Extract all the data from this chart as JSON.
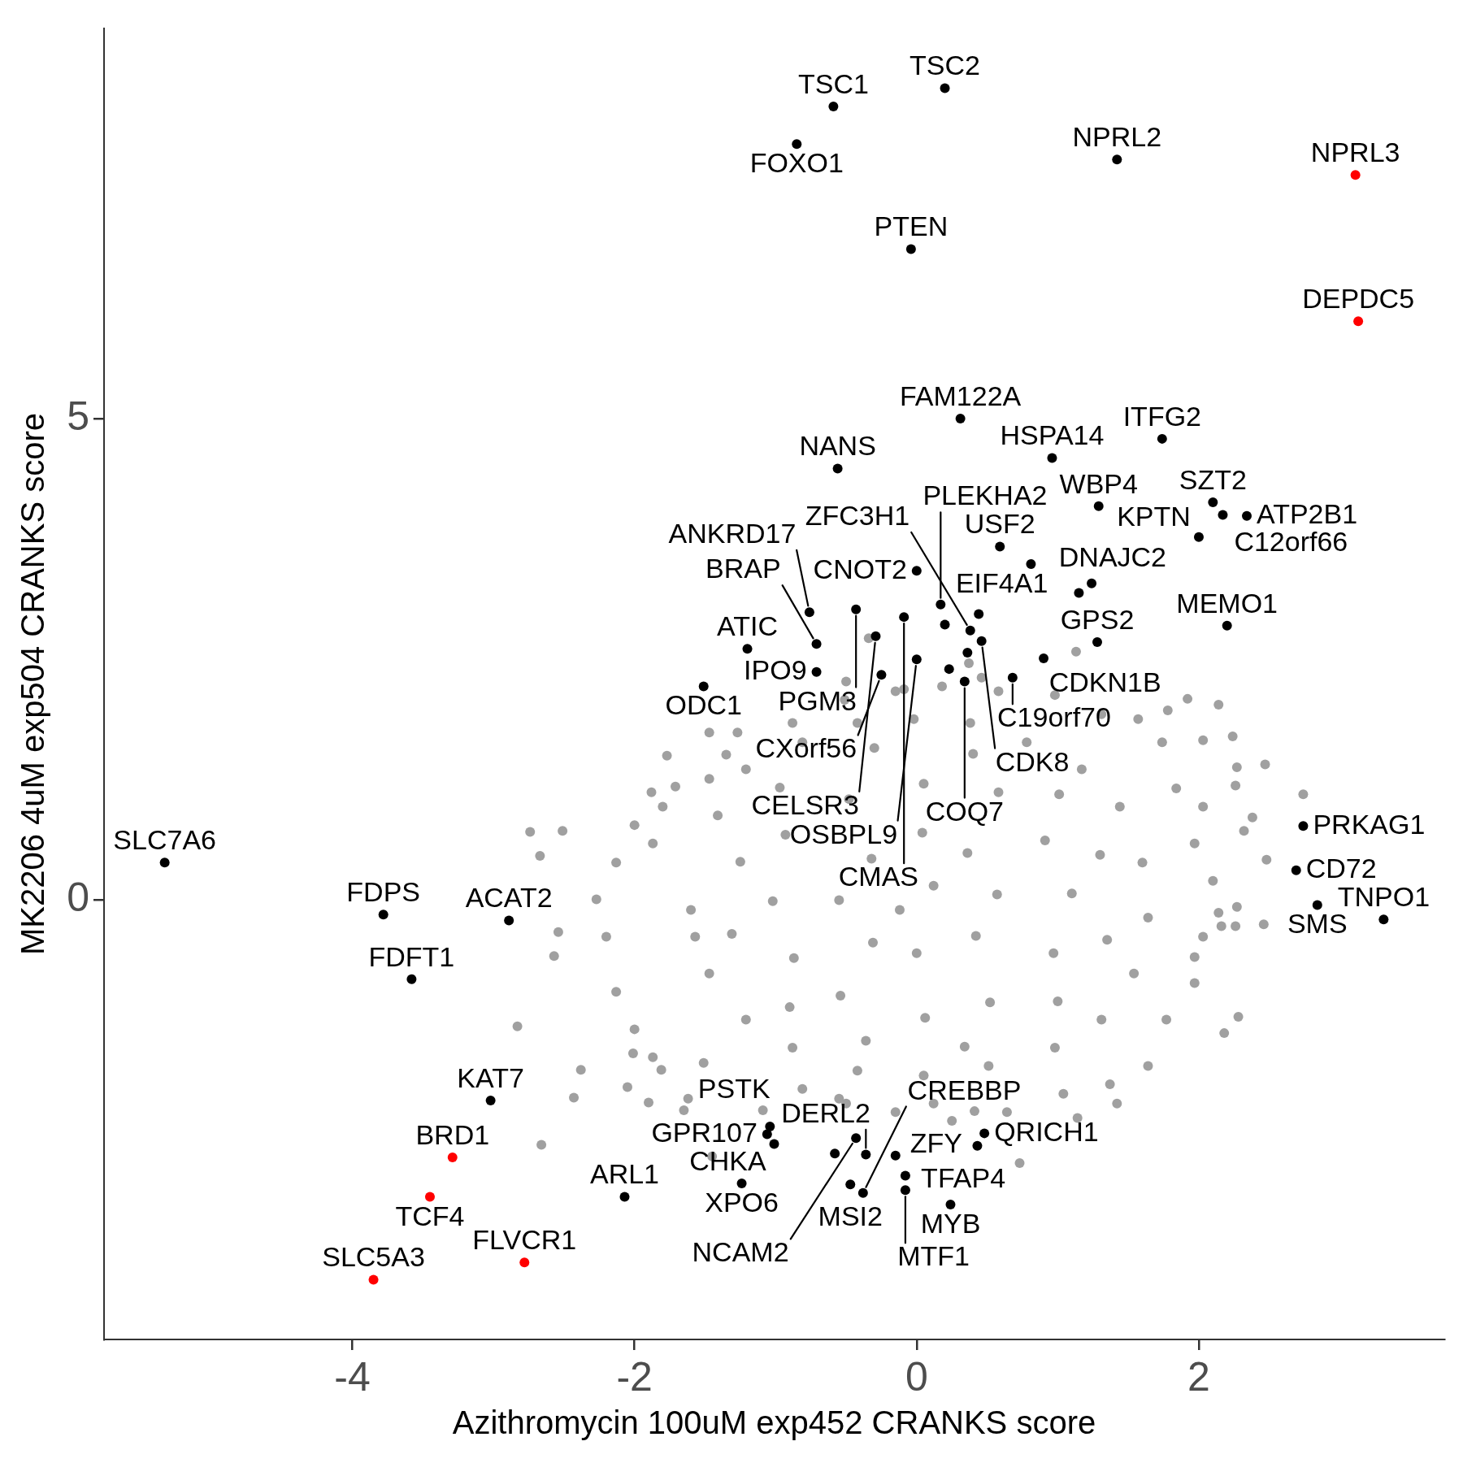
{
  "chart_data": {
    "type": "scatter",
    "xlabel": "Azithromycin 100uM exp452 CRANKS score",
    "ylabel": "MK2206 4uM exp504 CRANKS score",
    "xlim": [
      -5.76,
      3.74
    ],
    "ylim": [
      -4.56,
      9.05
    ],
    "xticks": [
      -4,
      -2,
      0,
      2
    ],
    "yticks": [
      0,
      5
    ],
    "marker": "circle",
    "series": [
      {
        "color": "#a0a0a0",
        "x": [
          -1.6,
          -1.41,
          -1.21,
          -0.81,
          -0.42,
          -0.02,
          0.38,
          0.78,
          1.17,
          1.44,
          1.6,
          1.64,
          1.54,
          1.31,
          0.98,
          0.51,
          0.05,
          -0.42,
          -0.88,
          -1.21,
          -1.47,
          -1.57,
          -1.87,
          -1.77,
          -1.47,
          -1.27,
          -0.88,
          -0.51,
          -0.15,
          0.18,
          0.58,
          0.98,
          1.31,
          1.57,
          1.74,
          1.84,
          2.03,
          1.97,
          2.1,
          2.03,
          1.97,
          1.77,
          1.64,
          1.37,
          1.04,
          0.64,
          0.12,
          -0.15,
          -0.55,
          -0.81,
          -1.87,
          -2.0,
          -2.13,
          -2.2,
          -2.27,
          -2.13,
          -2.0,
          -1.8,
          -2.74,
          -2.51,
          -2.67,
          -2.54,
          -2.57,
          -2.83,
          -2.38,
          -2.43,
          -2.66,
          -2.05,
          -1.9,
          -1.65,
          -1.62,
          -2.01,
          -1.81,
          -1.51,
          -1.45,
          -1.09,
          -0.5,
          0.25,
          0.41,
          0.73,
          1.14,
          1.42,
          2.28,
          2.18,
          1.97,
          2.14,
          2.16,
          2.26,
          2.27,
          2.46,
          2.48,
          2.32,
          2.38,
          2.74,
          2.47,
          2.27,
          2.26,
          2.03,
          2.24,
          1.78,
          1.92,
          2.14,
          1.13,
          0.37,
          0.46,
          -0.34,
          -0.5,
          -0.09,
          -1.47,
          -1.88,
          -1.71,
          -1.35,
          1.1,
          0.91,
          0.58,
          0.05,
          -0.48,
          -0.93,
          -1.02,
          -0.87,
          -0.54,
          0.06,
          0.52,
          0.97,
          0.57,
          0.36,
          0.04,
          -0.32,
          -0.55,
          -0.31,
          0.0,
          0.42,
          0.12,
          -0.12,
          1.3,
          1.01,
          0.4,
          -0.3,
          -0.97,
          -1.25,
          -1.31,
          -0.9,
          -0.36,
          0.34,
          1.0,
          1.35
        ],
        "values": [
          -0.1,
          0.88,
          1.36,
          1.64,
          1.84,
          1.88,
          1.84,
          1.64,
          1.36,
          0.97,
          0.39,
          -0.18,
          -0.76,
          -1.24,
          -1.53,
          -1.72,
          -1.82,
          -1.77,
          -1.53,
          -1.24,
          -0.76,
          -0.38,
          0.59,
          1.5,
          1.26,
          1.74,
          1.84,
          2.08,
          2.17,
          2.22,
          2.17,
          2.13,
          1.93,
          1.88,
          1.64,
          1.16,
          0.97,
          0.59,
          0.2,
          -0.38,
          -0.86,
          -1.24,
          -1.72,
          -1.91,
          -2.01,
          -2.2,
          -2.11,
          -2.2,
          -2.06,
          -1.96,
          -1.63,
          -1.34,
          -0.95,
          -0.38,
          0.01,
          0.39,
          0.78,
          0.97,
          0.71,
          0.72,
          0.46,
          -0.33,
          -0.58,
          -1.31,
          -1.76,
          -2.05,
          -2.54,
          -1.94,
          -2.1,
          -2.18,
          -2.06,
          -1.59,
          -1.76,
          -1.69,
          -2.66,
          -2.18,
          -2.11,
          -2.29,
          -2.19,
          -2.73,
          -2.26,
          -2.11,
          -1.21,
          -1.38,
          -0.59,
          -0.13,
          -0.27,
          -0.27,
          -0.07,
          -0.25,
          0.42,
          0.72,
          0.86,
          1.1,
          1.41,
          1.38,
          1.19,
          1.66,
          1.7,
          1.97,
          2.09,
          2.03,
          2.58,
          2.46,
          2.31,
          2.72,
          2.27,
          2.19,
          1.74,
          1.12,
          1.18,
          1.51,
          0.07,
          0.62,
          1.12,
          1.21,
          1.05,
          0.68,
          -0.01,
          -0.6,
          -0.99,
          -1.22,
          -1.06,
          -0.55,
          0.06,
          0.49,
          0.7,
          0.43,
          0.0,
          -0.44,
          -0.55,
          -0.37,
          0.15,
          -0.1,
          0.47,
          1.1,
          1.52,
          1.58,
          1.17,
          0.4,
          -0.35,
          -1.11,
          -1.46,
          -1.52,
          -1.05,
          -0.41
        ]
      },
      {
        "color": "#000000",
        "x": [
          -0.59,
          0.2,
          -0.85,
          1.42,
          -0.04,
          0.31,
          1.74,
          -0.56,
          0.96,
          2.1,
          2.17,
          2.34,
          2.0,
          1.29,
          0.59,
          0.81,
          1.24,
          1.15,
          0.0,
          -0.76,
          -0.43,
          -0.09,
          0.17,
          0.44,
          0.2,
          0.38,
          0.46,
          1.28,
          2.2,
          0.9,
          -1.2,
          -0.71,
          -0.29,
          -1.51,
          -0.71,
          -0.25,
          0.0,
          0.23,
          0.36,
          0.34,
          0.68,
          2.74,
          2.69,
          2.84,
          3.31,
          -5.33,
          -3.78,
          -2.89,
          -3.58,
          -3.02,
          -2.07,
          -1.04,
          -1.06,
          -1.01,
          -1.24,
          -0.43,
          -0.58,
          -0.36,
          -0.15,
          -0.08,
          -0.08,
          -0.47,
          -0.38,
          0.24,
          0.48,
          0.43
        ],
        "values": [
          8.24,
          8.43,
          7.85,
          7.69,
          6.76,
          5.0,
          4.79,
          4.48,
          4.59,
          4.13,
          4.0,
          3.99,
          3.77,
          4.09,
          3.67,
          3.49,
          3.29,
          3.19,
          3.42,
          2.99,
          3.02,
          2.94,
          3.07,
          2.97,
          2.86,
          2.8,
          2.69,
          2.68,
          2.85,
          2.51,
          2.61,
          2.66,
          2.74,
          2.22,
          2.37,
          2.34,
          2.5,
          2.4,
          2.57,
          2.27,
          2.31,
          0.77,
          0.31,
          -0.05,
          -0.2,
          0.39,
          -0.15,
          -0.21,
          -0.82,
          -2.08,
          -3.08,
          -2.35,
          -2.43,
          -2.53,
          -2.94,
          -2.47,
          -2.63,
          -2.64,
          -2.65,
          -2.86,
          -3.01,
          -2.95,
          -3.04,
          -3.16,
          -2.42,
          -2.55
        ]
      },
      {
        "color": "#ff0000",
        "x": [
          3.11,
          3.13,
          -3.29,
          -3.45,
          -3.85,
          -2.78
        ],
        "values": [
          7.53,
          6.01,
          -2.67,
          -3.08,
          -3.94,
          -3.76
        ]
      }
    ],
    "annotations": [
      {
        "text": "TSC1",
        "x": -0.59,
        "y": 8.24
      },
      {
        "text": "TSC2",
        "x": 0.2,
        "y": 8.43
      },
      {
        "text": "FOXO1",
        "x": -0.85,
        "y": 7.85
      },
      {
        "text": "NPRL2",
        "x": 1.42,
        "y": 7.69
      },
      {
        "text": "NPRL3",
        "x": 3.11,
        "y": 7.53
      },
      {
        "text": "PTEN",
        "x": -0.04,
        "y": 6.76
      },
      {
        "text": "DEPDC5",
        "x": 3.13,
        "y": 6.01
      },
      {
        "text": "FAM122A",
        "x": 0.31,
        "y": 5.0
      },
      {
        "text": "ITFG2",
        "x": 1.74,
        "y": 4.79
      },
      {
        "text": "NANS",
        "x": -0.56,
        "y": 4.48
      },
      {
        "text": "HSPA14",
        "x": 0.96,
        "y": 4.59
      },
      {
        "text": "SZT2",
        "x": 2.1,
        "y": 4.13
      },
      {
        "text": "C12orf66",
        "x": 2.17,
        "y": 4.0
      },
      {
        "text": "ATP2B1",
        "x": 2.34,
        "y": 3.99
      },
      {
        "text": "KPTN",
        "x": 2.0,
        "y": 3.77
      },
      {
        "text": "WBP4",
        "x": 1.29,
        "y": 4.09
      },
      {
        "text": "USF2",
        "x": 0.59,
        "y": 3.67
      },
      {
        "text": "EIF4A1",
        "x": 0.81,
        "y": 3.49
      },
      {
        "text": "DNAJC2",
        "x": 1.15,
        "y": 3.19
      },
      {
        "text": "CNOT2",
        "x": 0.0,
        "y": 3.42
      },
      {
        "text": "ANKRD17",
        "x": -0.76,
        "y": 2.99
      },
      {
        "text": "PGM3",
        "x": -0.43,
        "y": 3.02
      },
      {
        "text": "CMAS",
        "x": -0.09,
        "y": 2.94
      },
      {
        "text": "PLEKHA2",
        "x": 0.17,
        "y": 3.07
      },
      {
        "text": "ZFC3H1",
        "x": 0.38,
        "y": 2.8
      },
      {
        "text": "CDK8",
        "x": 0.46,
        "y": 2.69
      },
      {
        "text": "GPS2",
        "x": 1.28,
        "y": 2.68
      },
      {
        "text": "MEMO1",
        "x": 2.2,
        "y": 2.85
      },
      {
        "text": "CDKN1B",
        "x": 0.9,
        "y": 2.51
      },
      {
        "text": "ATIC",
        "x": -1.2,
        "y": 2.61
      },
      {
        "text": "BRAP",
        "x": -0.71,
        "y": 2.66
      },
      {
        "text": "CELSR3",
        "x": -0.29,
        "y": 2.74
      },
      {
        "text": "ODC1",
        "x": -1.51,
        "y": 2.22
      },
      {
        "text": "IPO9",
        "x": -0.71,
        "y": 2.37
      },
      {
        "text": "CXorf56",
        "x": -0.25,
        "y": 2.34
      },
      {
        "text": "OSBPL9",
        "x": 0.0,
        "y": 2.5
      },
      {
        "text": "COQ7",
        "x": 0.34,
        "y": 2.27
      },
      {
        "text": "C19orf70",
        "x": 0.68,
        "y": 2.31
      },
      {
        "text": "PRKAG1",
        "x": 2.74,
        "y": 0.77
      },
      {
        "text": "CD72",
        "x": 2.69,
        "y": 0.31
      },
      {
        "text": "SMS",
        "x": 2.84,
        "y": -0.05
      },
      {
        "text": "TNPO1",
        "x": 3.31,
        "y": -0.2
      },
      {
        "text": "SLC7A6",
        "x": -5.33,
        "y": 0.39
      },
      {
        "text": "FDPS",
        "x": -3.78,
        "y": -0.15
      },
      {
        "text": "ACAT2",
        "x": -2.89,
        "y": -0.21
      },
      {
        "text": "FDFT1",
        "x": -3.58,
        "y": -0.82
      },
      {
        "text": "KAT7",
        "x": -3.02,
        "y": -2.08
      },
      {
        "text": "BRD1",
        "x": -3.29,
        "y": -2.67
      },
      {
        "text": "TCF4",
        "x": -3.45,
        "y": -3.08
      },
      {
        "text": "SLC5A3",
        "x": -3.85,
        "y": -3.94
      },
      {
        "text": "FLVCR1",
        "x": -2.78,
        "y": -3.76
      },
      {
        "text": "ARL1",
        "x": -2.07,
        "y": -3.08
      },
      {
        "text": "PSTK",
        "x": -1.04,
        "y": -2.35
      },
      {
        "text": "GPR107",
        "x": -1.06,
        "y": -2.43
      },
      {
        "text": "CHKA",
        "x": -1.01,
        "y": -2.53
      },
      {
        "text": "XPO6",
        "x": -1.24,
        "y": -2.94
      },
      {
        "text": "NCAM2",
        "x": -0.43,
        "y": -2.47
      },
      {
        "text": "DERL2",
        "x": -0.36,
        "y": -2.64
      },
      {
        "text": "ZFY",
        "x": -0.08,
        "y": -2.86
      },
      {
        "text": "MTF1",
        "x": -0.08,
        "y": -3.01
      },
      {
        "text": "MSI2",
        "x": -0.47,
        "y": -2.95
      },
      {
        "text": "CREBBP",
        "x": -0.38,
        "y": -3.04
      },
      {
        "text": "MYB",
        "x": 0.24,
        "y": -3.16
      },
      {
        "text": "QRICH1",
        "x": 0.48,
        "y": -2.42
      },
      {
        "text": "TFAP4",
        "x": 0.43,
        "y": -2.55
      }
    ]
  }
}
